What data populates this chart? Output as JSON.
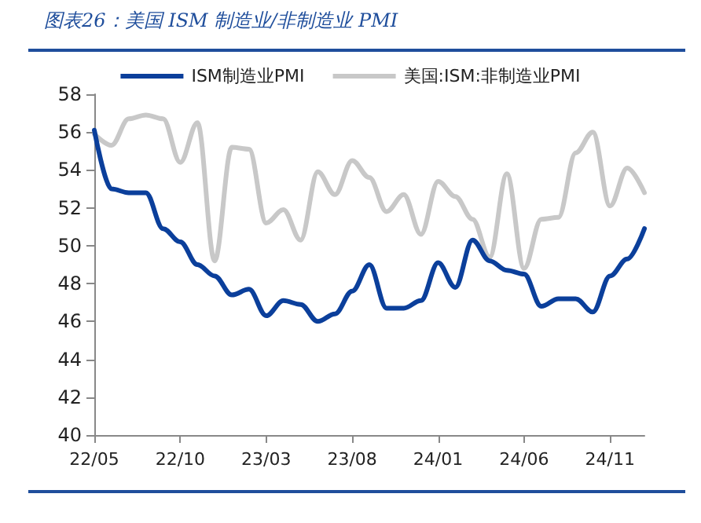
{
  "chart_data": {
    "type": "line",
    "title": "图表26：美国 ISM 制造业/非制造业 PMI",
    "categories": [
      "22/05",
      null,
      null,
      null,
      null,
      "22/10",
      null,
      null,
      null,
      null,
      "23/03",
      null,
      null,
      null,
      null,
      "23/08",
      null,
      null,
      null,
      null,
      "24/01",
      null,
      null,
      null,
      null,
      "24/06",
      null,
      null,
      null,
      null,
      "24/11",
      null,
      null
    ],
    "series": [
      {
        "name": "ISM制造业PMI",
        "color": "#0b3f9b",
        "values": [
          56.1,
          53.0,
          52.8,
          52.8,
          50.9,
          50.2,
          49.0,
          48.4,
          47.4,
          47.7,
          46.3,
          47.1,
          46.9,
          46.0,
          46.4,
          47.6,
          49.0,
          46.7,
          46.7,
          47.1,
          49.1,
          47.8,
          50.3,
          49.2,
          48.7,
          48.5,
          46.8,
          47.2,
          47.2,
          46.5,
          48.4,
          49.3,
          50.9
        ]
      },
      {
        "name": "美国:ISM:非制造业PMI",
        "color": "#c8c8c8",
        "values": [
          55.9,
          55.3,
          56.7,
          56.9,
          56.7,
          54.4,
          56.5,
          49.2,
          55.2,
          55.1,
          51.2,
          51.9,
          50.3,
          53.9,
          52.7,
          54.5,
          53.6,
          51.8,
          52.7,
          50.6,
          53.4,
          52.6,
          51.4,
          49.4,
          53.8,
          48.8,
          51.4,
          51.5,
          54.9,
          56.0,
          52.1,
          54.1,
          52.8
        ]
      }
    ],
    "ylim": [
      40,
      58
    ],
    "yticks": [
      40,
      42,
      44,
      46,
      48,
      50,
      52,
      54,
      56,
      58
    ],
    "grid": false,
    "legend": "top",
    "marker": "none",
    "line_style": "solid"
  }
}
